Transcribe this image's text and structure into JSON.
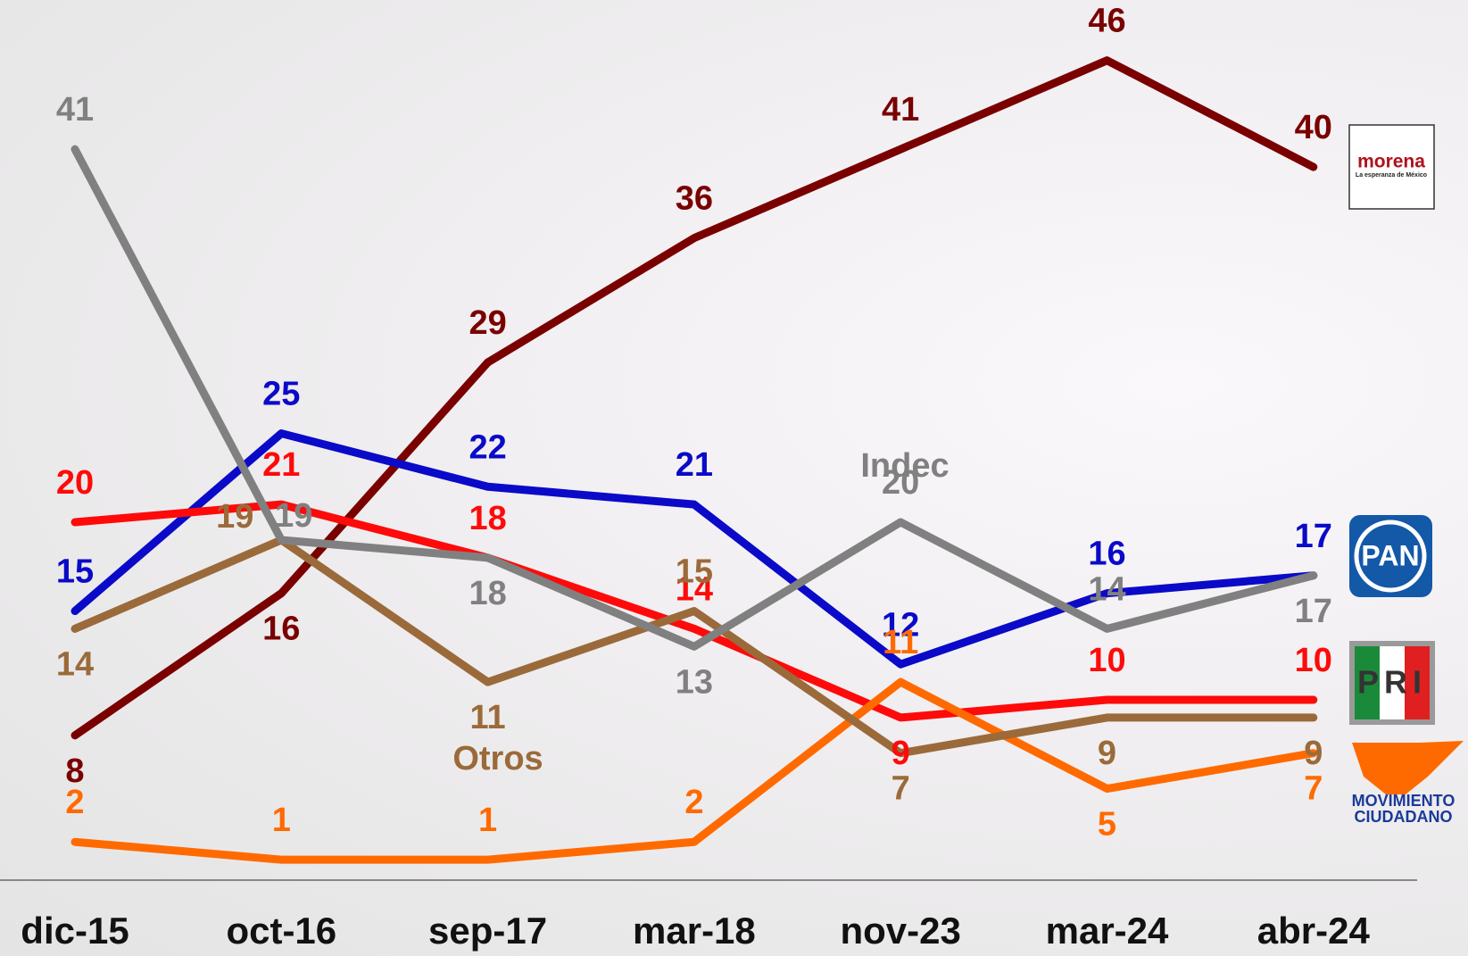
{
  "chart_data": {
    "type": "line",
    "categories": [
      "dic-15",
      "oct-16",
      "sep-17",
      "mar-18",
      "nov-23",
      "mar-24",
      "abr-24"
    ],
    "series": [
      {
        "name": "morena",
        "color": "#7a0000",
        "values": [
          8,
          16,
          29,
          36,
          41,
          46,
          40
        ]
      },
      {
        "name": "PAN",
        "color": "#0a0ac8",
        "values": [
          15,
          25,
          22,
          21,
          12,
          16,
          17
        ]
      },
      {
        "name": "PRI",
        "color": "#ff0a0a",
        "values": [
          20,
          21,
          18,
          14,
          9,
          10,
          10
        ]
      },
      {
        "name": "MOVIMIENTO CIUDADANO",
        "color": "#ff6a00",
        "values": [
          2,
          1,
          1,
          2,
          11,
          5,
          7
        ]
      },
      {
        "name": "Otros",
        "color": "#9b6a3a",
        "values": [
          14,
          19,
          11,
          15,
          7,
          9,
          9
        ]
      },
      {
        "name": "Indec",
        "color": "#808080",
        "values": [
          41,
          19,
          18,
          13,
          20,
          14,
          17
        ]
      }
    ],
    "annotations": [
      "La esperanza de México"
    ],
    "ylim": [
      0,
      49
    ]
  }
}
